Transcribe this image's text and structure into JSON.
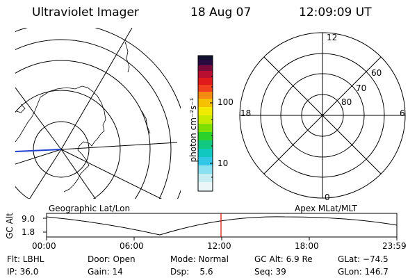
{
  "header": {
    "title": "Ultraviolet Imager",
    "date": "18 Aug 07",
    "time": "12:09:09 UT"
  },
  "colorbar": {
    "unit_label": "photon cm⁻²s⁻¹",
    "ticks": [
      "100",
      "10"
    ]
  },
  "polar_plot": {
    "mlt_labels": [
      "12",
      "18",
      "6",
      "0"
    ],
    "mlat_labels": [
      "60",
      "70",
      "80"
    ]
  },
  "panel_labels": {
    "left": "Geographic Lat/Lon",
    "right": "Apex MLat/MLT"
  },
  "timeline": {
    "ylabel": "GC Alt",
    "y_ticks": [
      "9.0",
      "1.8"
    ],
    "x_ticks": [
      "00:00",
      "06:00",
      "12:00",
      "18:00",
      "23:59"
    ]
  },
  "info": {
    "row1": {
      "flt": "Flt: LBHL",
      "door": "Door: Open",
      "mode": "Mode: Normal",
      "gcalt": "GC Alt: 6.9 Re",
      "glat": "GLat: −74.5"
    },
    "row2": {
      "ip": "IP: 36.0",
      "gain": "Gain: 14",
      "dsp": "Dsp:    5.6",
      "seq": "Seq: 39",
      "glon": "GLon: 146.7"
    }
  },
  "colors": {
    "track": "#1f3fd0",
    "marker": "#e00000"
  }
}
